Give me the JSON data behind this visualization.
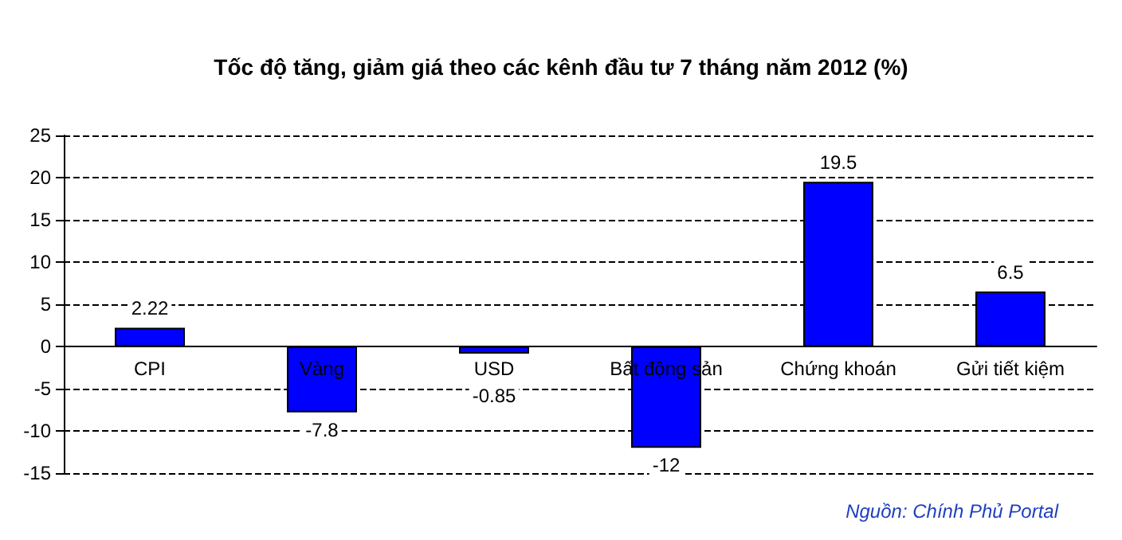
{
  "chart_data": {
    "type": "bar",
    "title": "Tốc độ tăng, giảm giá theo các kênh đầu tư 7 tháng năm 2012 (%)",
    "categories": [
      "CPI",
      "Vàng",
      "USD",
      "Bất động sản",
      "Chứng khoán",
      "Gửi tiết kiệm"
    ],
    "values": [
      2.22,
      -7.8,
      -0.85,
      -12,
      19.5,
      6.5
    ],
    "color": "#0000ff",
    "ylim": [
      -15,
      25
    ],
    "yticks": [
      -15,
      -10,
      -5,
      0,
      5,
      10,
      15,
      20,
      25
    ],
    "grid": "y",
    "data_labels": true,
    "annotations": [
      "Nguồn: Chính Phủ Portal"
    ]
  }
}
